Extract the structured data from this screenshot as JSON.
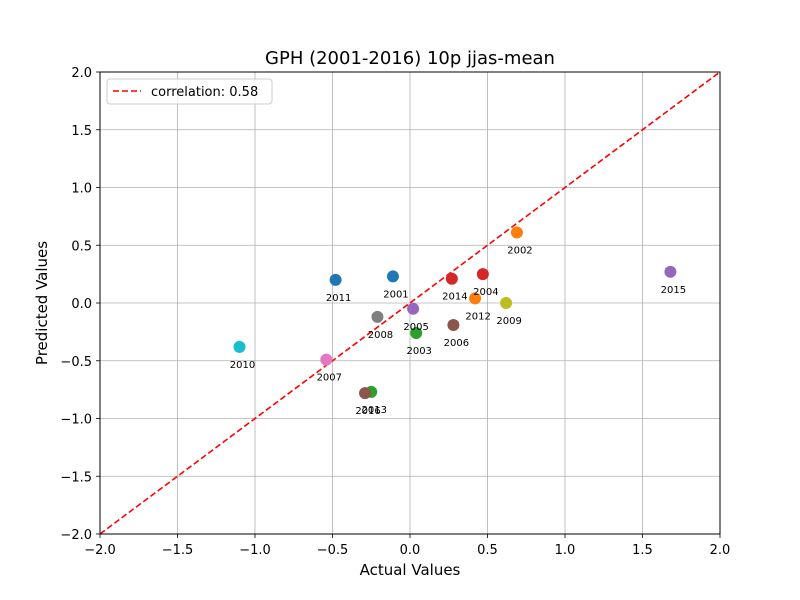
{
  "chart_data": {
    "type": "scatter",
    "title": "GPH (2001-2016) 10p jjas-mean",
    "xlabel": "Actual Values",
    "ylabel": "Predicted Values",
    "xlim": [
      -2.0,
      2.0
    ],
    "ylim": [
      -2.0,
      2.0
    ],
    "xticks": [
      -2.0,
      -1.5,
      -1.0,
      -0.5,
      0.0,
      0.5,
      1.0,
      1.5,
      2.0
    ],
    "yticks": [
      -2.0,
      -1.5,
      -1.0,
      -0.5,
      0.0,
      0.5,
      1.0,
      1.5,
      2.0
    ],
    "xtick_labels": [
      "−2.0",
      "−1.5",
      "−1.0",
      "−0.5",
      "0.0",
      "0.5",
      "1.0",
      "1.5",
      "2.0"
    ],
    "ytick_labels": [
      "−2.0",
      "−1.5",
      "−1.0",
      "−0.5",
      "0.0",
      "0.5",
      "1.0",
      "1.5",
      "2.0"
    ],
    "grid": true,
    "legend": {
      "placement": "top-left",
      "entries": [
        {
          "label": "correlation: 0.58",
          "style": "dashed-line",
          "color": "#ff0000"
        }
      ]
    },
    "reference_line": {
      "x": [
        -2.0,
        2.0
      ],
      "y": [
        -2.0,
        2.0
      ],
      "color": "#ff0000",
      "style": "dashed"
    },
    "points": [
      {
        "label": "2001",
        "x": -0.11,
        "y": 0.23,
        "color": "#1f77b4"
      },
      {
        "label": "2002",
        "x": 0.69,
        "y": 0.61,
        "color": "#ff7f0e"
      },
      {
        "label": "2003",
        "x": 0.04,
        "y": -0.26,
        "color": "#2ca02c"
      },
      {
        "label": "2004",
        "x": 0.47,
        "y": 0.25,
        "color": "#d62728"
      },
      {
        "label": "2005",
        "x": 0.02,
        "y": -0.05,
        "color": "#9467bd"
      },
      {
        "label": "2006",
        "x": 0.28,
        "y": -0.19,
        "color": "#8c564b"
      },
      {
        "label": "2007",
        "x": -0.54,
        "y": -0.49,
        "color": "#e377c2"
      },
      {
        "label": "2008",
        "x": -0.21,
        "y": -0.12,
        "color": "#7f7f7f"
      },
      {
        "label": "2009",
        "x": 0.62,
        "y": 0.0,
        "color": "#bcbd22"
      },
      {
        "label": "2010",
        "x": -1.1,
        "y": -0.38,
        "color": "#17becf"
      },
      {
        "label": "2011",
        "x": -0.48,
        "y": 0.2,
        "color": "#1f77b4"
      },
      {
        "label": "2012",
        "x": 0.42,
        "y": 0.04,
        "color": "#ff7f0e"
      },
      {
        "label": "2013",
        "x": -0.25,
        "y": -0.77,
        "color": "#2ca02c"
      },
      {
        "label": "2014",
        "x": 0.27,
        "y": 0.21,
        "color": "#d62728"
      },
      {
        "label": "2015",
        "x": 1.68,
        "y": 0.27,
        "color": "#9467bd"
      },
      {
        "label": "2016",
        "x": -0.29,
        "y": -0.78,
        "color": "#8c564b"
      }
    ]
  }
}
